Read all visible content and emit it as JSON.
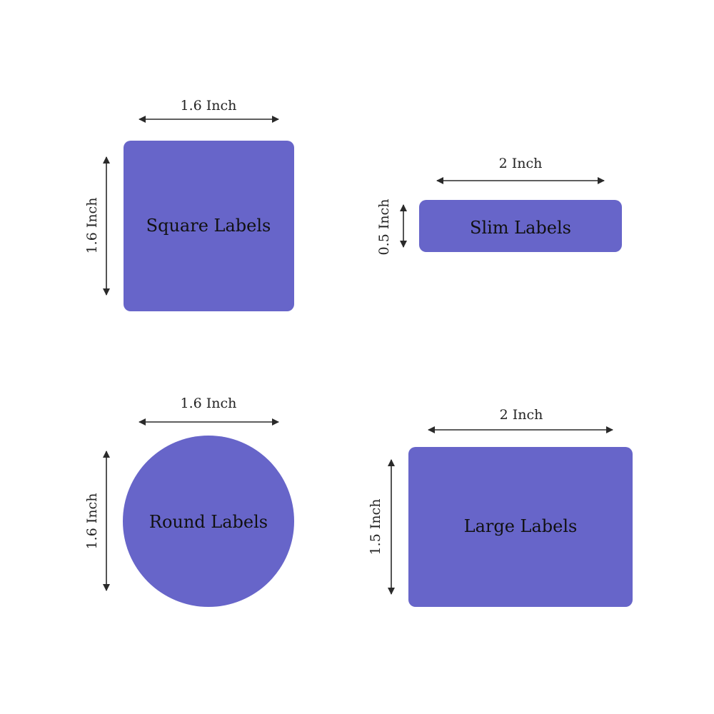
{
  "colors": {
    "label_fill": "#6765C9",
    "arrow": "#2a2a2a",
    "background": "#ffffff"
  },
  "shapes": {
    "square": {
      "name": "Square Labels",
      "width": "1.6 Inch",
      "height": "1.6 Inch"
    },
    "slim": {
      "name": "Slim Labels",
      "width": "2 Inch",
      "height": "0.5 Inch"
    },
    "round": {
      "name": "Round Labels",
      "width": "1.6 Inch",
      "height": "1.6 Inch"
    },
    "large": {
      "name": "Large Labels",
      "width": "2 Inch",
      "height": "1.5 Inch"
    }
  }
}
